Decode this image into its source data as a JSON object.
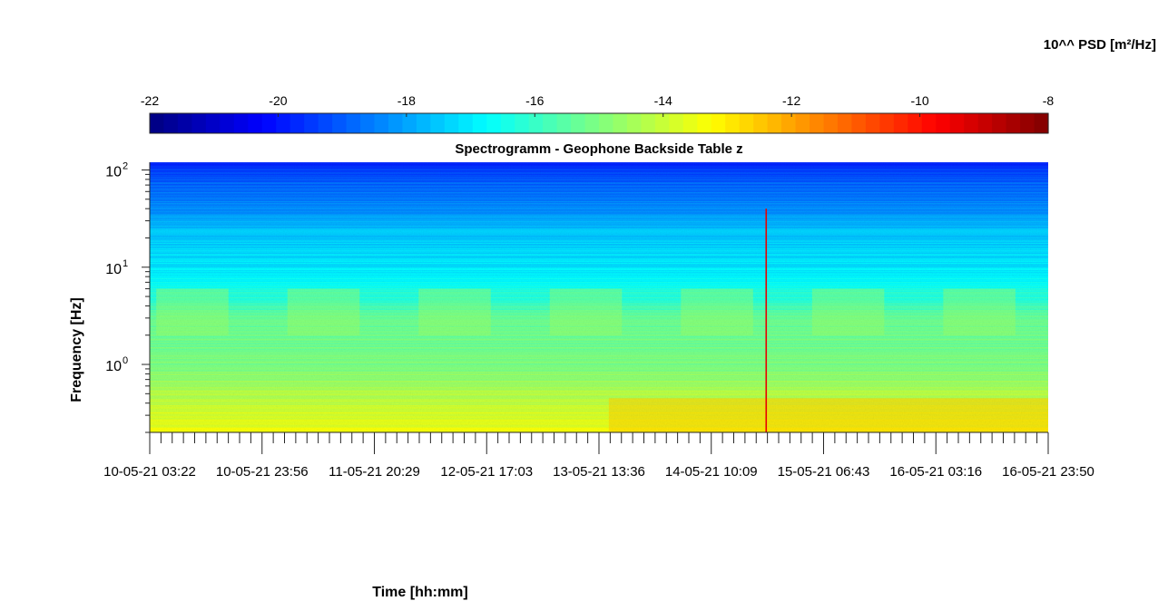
{
  "chart_data": {
    "type": "heatmap",
    "title": "Spectrogramm - Geophone Backside Table z",
    "xlabel": "Time [hh:mm]",
    "ylabel": "Frequency [Hz]",
    "colorbar": {
      "label": "10^^ PSD [m²/Hz]",
      "range": [
        -22,
        -8
      ],
      "ticks": [
        -22,
        -20,
        -18,
        -16,
        -14,
        -12,
        -10,
        -8
      ],
      "tick_labels": [
        "-22",
        "-20",
        "-18",
        "-16",
        "-14",
        "-12",
        "-10",
        "-8"
      ],
      "colormap": "jet",
      "location": "top"
    },
    "y_scale": "log",
    "y_ticks": [
      {
        "base": "10",
        "exp": "0",
        "value": 1
      },
      {
        "base": "10",
        "exp": "1",
        "value": 10
      },
      {
        "base": "10",
        "exp": "2",
        "value": 100
      }
    ],
    "y_range_hz": [
      0.2,
      120
    ],
    "x_tick_labels": [
      "10-05-21 03:22",
      "10-05-21 23:56",
      "11-05-21 20:29",
      "12-05-21 17:03",
      "13-05-21 13:36",
      "14-05-21 10:09",
      "15-05-21 06:43",
      "16-05-21 03:16",
      "16-05-21 23:50"
    ],
    "x_range_days": [
      0,
      6.85
    ],
    "psd_log10_profile": {
      "frequency_hz": [
        120,
        80,
        40,
        25,
        10,
        5,
        3,
        1,
        0.5,
        0.3,
        0.2
      ],
      "background_value": [
        -19.7,
        -19.0,
        -18.3,
        -17.6,
        -17.0,
        -16.2,
        -15.4,
        -15.0,
        -14.3,
        -13.8,
        -13.4
      ]
    },
    "features": {
      "day_night_bands_hz": [
        2,
        6
      ],
      "transient_spike_day": 4.7,
      "high_energy_low_freq_interval_days": [
        3.5,
        6.85
      ],
      "microseism_band_hz": [
        0.2,
        0.45
      ]
    }
  }
}
